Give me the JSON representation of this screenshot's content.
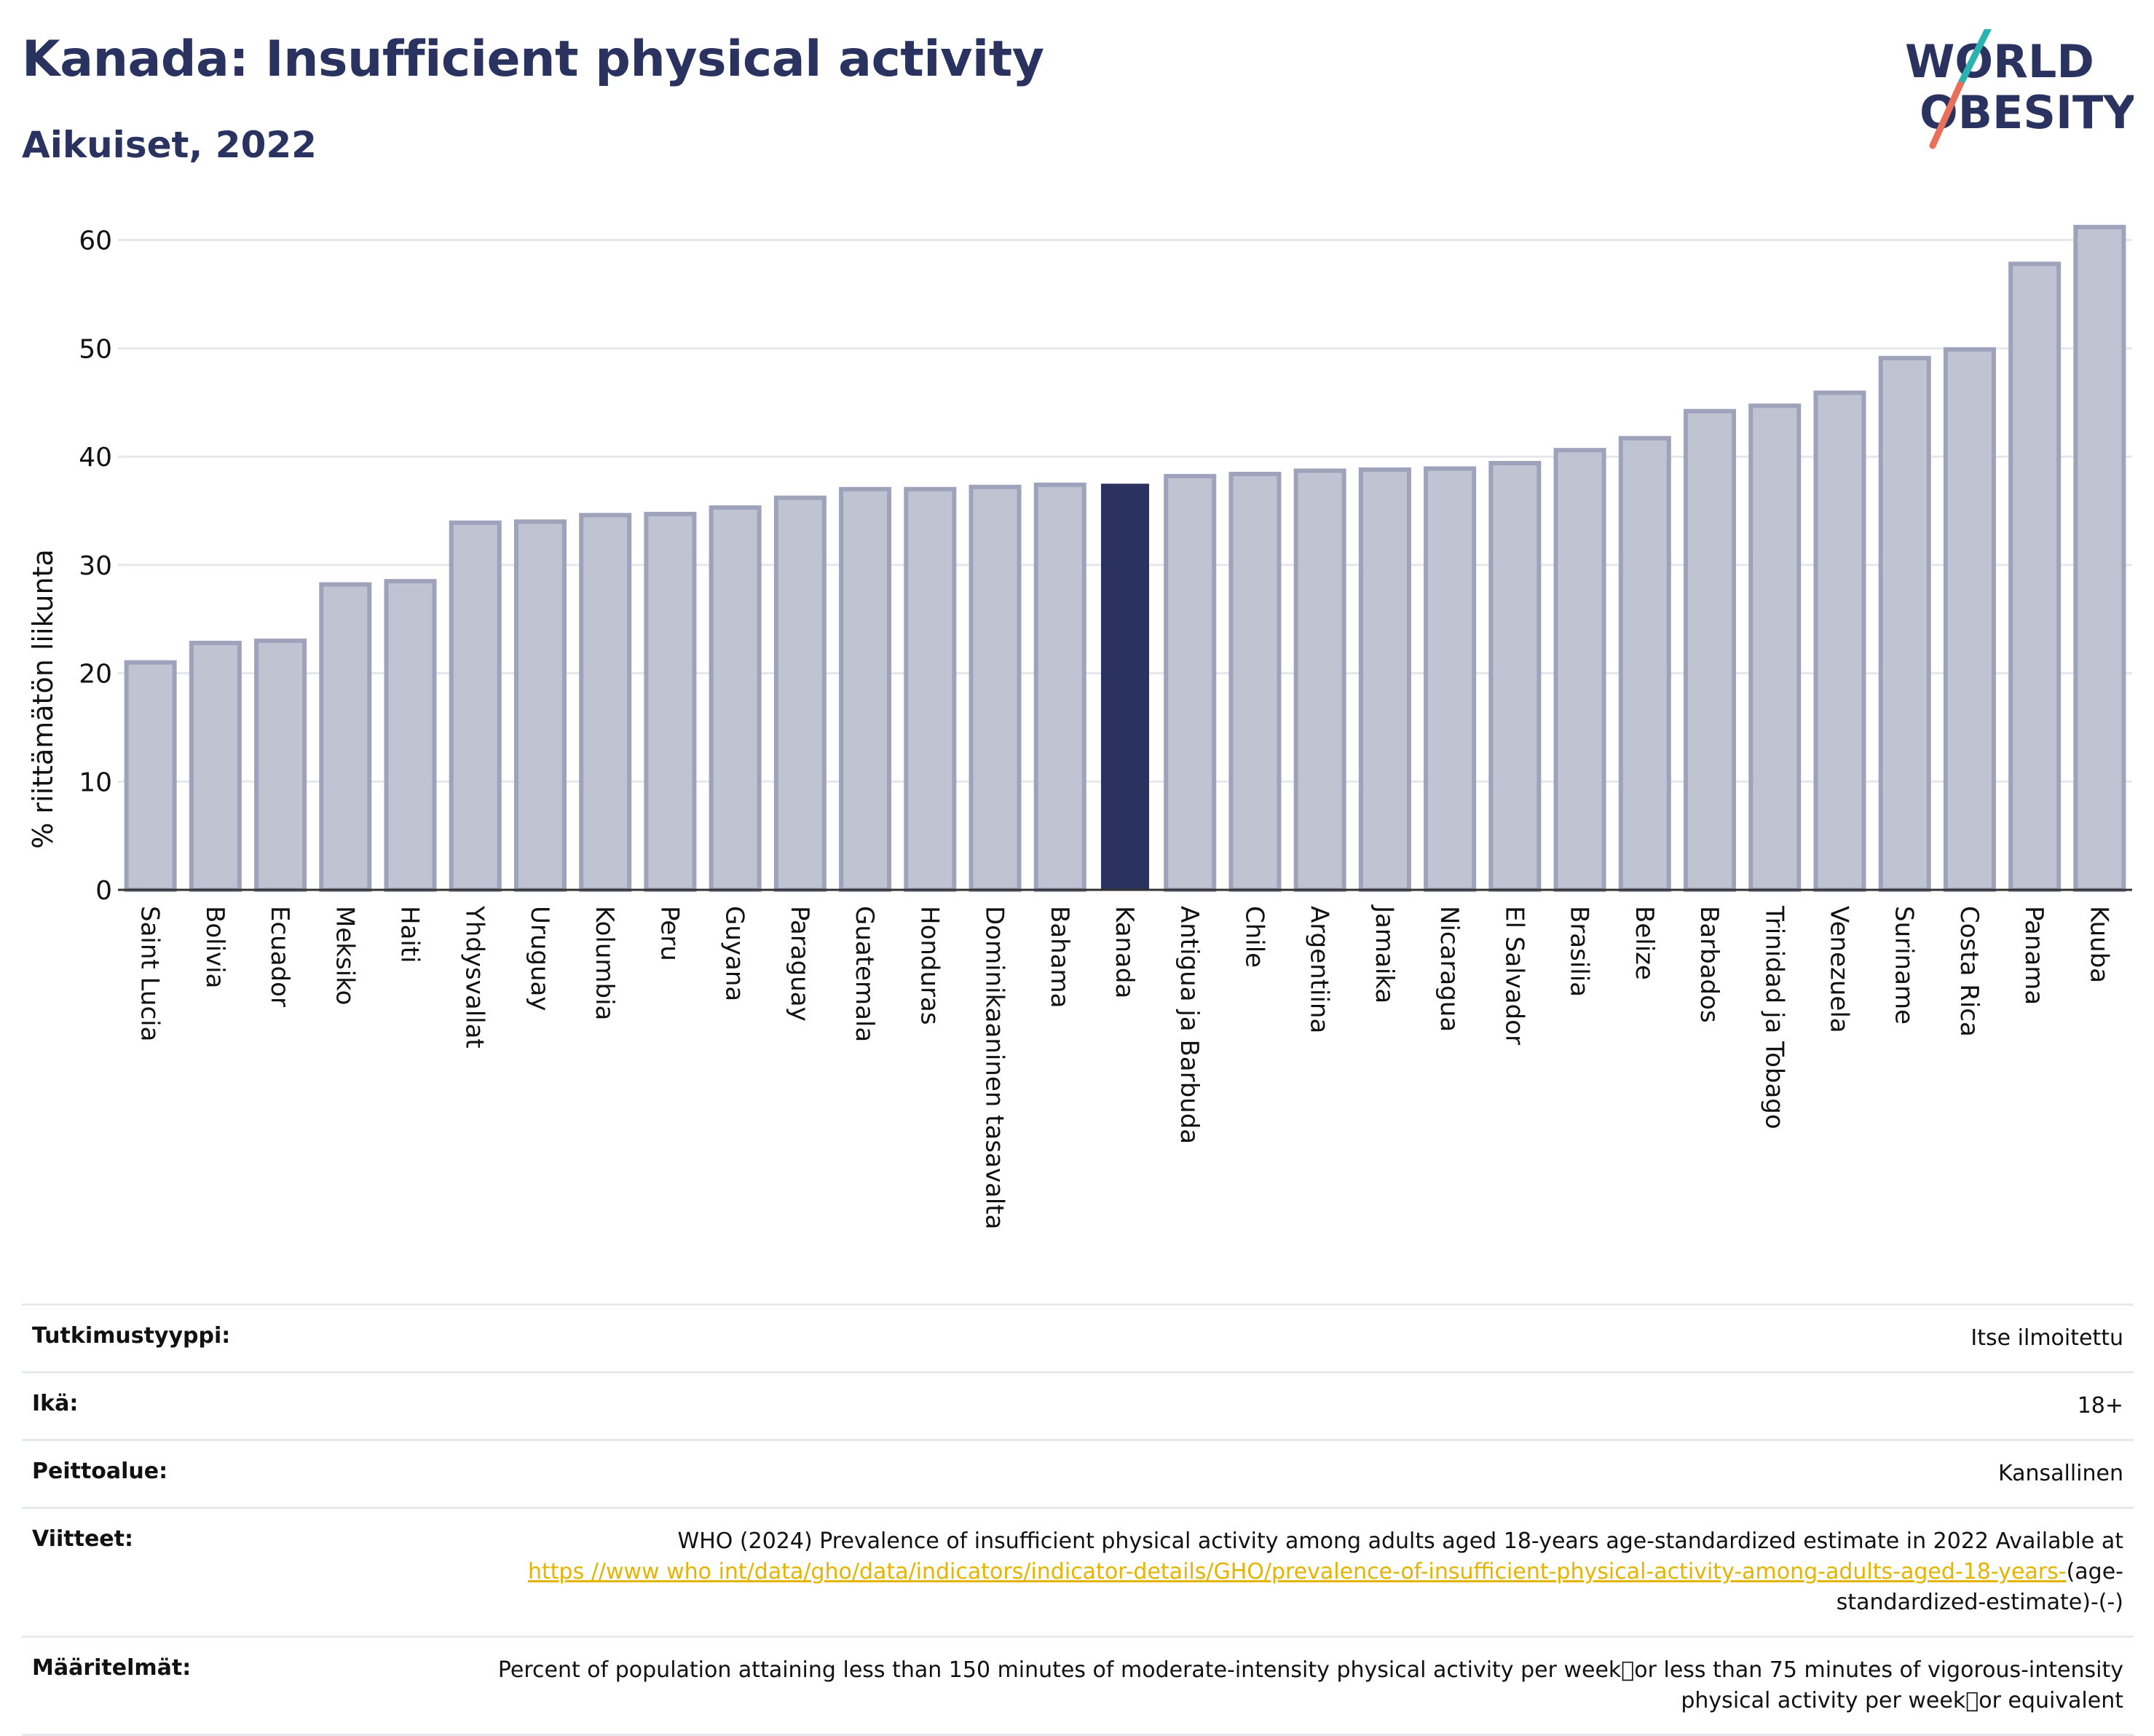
{
  "header": {
    "title": "Kanada: Insufficient physical activity",
    "subtitle": "Aikuiset, 2022"
  },
  "logo": {
    "line1": "WORLD",
    "line2": "OBESITY",
    "accent_top": "#2ab3b1",
    "accent_bottom": "#e8705a"
  },
  "colors": {
    "bar": "#c0c3d2",
    "bar_stroke": "#9ea3bb",
    "highlight": "#2a3360",
    "text": "#2a3360",
    "grid": "#e6e7ec"
  },
  "chart_data": {
    "type": "bar",
    "ylabel": "% riittämätön liikunta",
    "ylim": [
      0,
      63
    ],
    "yticks": [
      0,
      10,
      20,
      30,
      40,
      50,
      60
    ],
    "grid": true,
    "highlight": "Kanada",
    "categories": [
      "Saint Lucia",
      "Bolivia",
      "Ecuador",
      "Meksiko",
      "Haiti",
      "Yhdysvallat",
      "Uruguay",
      "Kolumbia",
      "Peru",
      "Guyana",
      "Paraguay",
      "Guatemala",
      "Honduras",
      "Dominikaaninen tasavalta",
      "Bahama",
      "Kanada",
      "Antigua ja Barbuda",
      "Chile",
      "Argentiina",
      "Jamaika",
      "Nicaragua",
      "El Salvador",
      "Brasilia",
      "Belize",
      "Barbados",
      "Trinidad ja Tobago",
      "Venezuela",
      "Suriname",
      "Costa Rica",
      "Panama",
      "Kuuba"
    ],
    "values": [
      21.0,
      22.8,
      23.0,
      28.2,
      28.5,
      33.9,
      34.0,
      34.6,
      34.7,
      35.3,
      36.2,
      37.0,
      37.0,
      37.2,
      37.4,
      37.5,
      38.2,
      38.4,
      38.7,
      38.8,
      38.9,
      39.4,
      40.6,
      41.7,
      44.2,
      44.7,
      45.9,
      49.1,
      49.9,
      57.8,
      61.2
    ]
  },
  "info": {
    "survey_type_label": "Tutkimustyyppi:",
    "survey_type_value": "Itse ilmoitettu",
    "age_label": "Ikä:",
    "age_value": "18+",
    "coverage_label": "Peittoalue:",
    "coverage_value": "Kansallinen",
    "references_label": "Viitteet:",
    "references_text": "WHO (2024)  Prevalence of insufficient physical activity among adults aged 18-years age-standardized estimate in 2022  Available at",
    "references_link": "https //www who int/data/gho/data/indicators/indicator-details/GHO/prevalence-of-insufficient-physical-activity-among-adults-aged-18-years-",
    "references_suffix": "(age-standardized-estimate)-(-)",
    "definitions_label": "Määritelmät:",
    "definitions_text": "Percent of population attaining less than 150 minutes of moderate-intensity physical activity per week\u0000or less than 75 minutes of vigorous-intensity physical activity per week\u0000or equivalent"
  }
}
